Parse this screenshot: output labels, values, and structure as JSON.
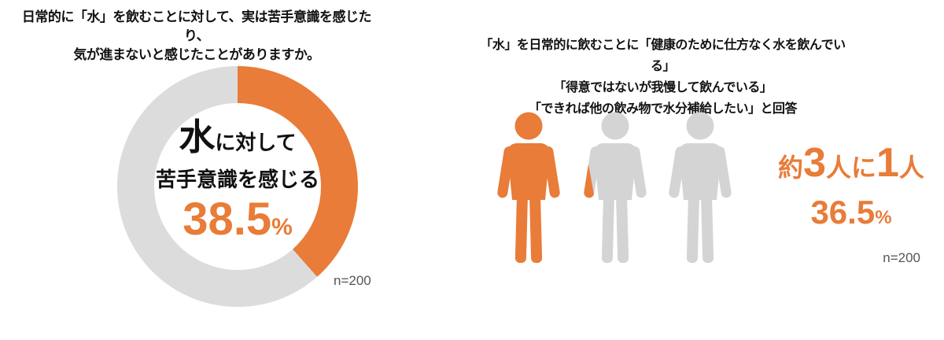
{
  "colors": {
    "accent_orange": "#E87C38",
    "donut_gray": "#DCDCDC",
    "person_gray": "#D4D4D4",
    "title_text": "#111111",
    "note_text": "#555555"
  },
  "left_panel": {
    "title_lines": [
      "日常的に「水」を飲むことに対して、実は苦手意識を感じたり、",
      "気が進まないと感じたことがありますか。"
    ],
    "donut_center": {
      "emphasis": "水",
      "suffix": "に対して",
      "line2": "苦手意識を感じる",
      "value": "38.5",
      "unit": "%"
    },
    "sample_note": "n=200"
  },
  "right_panel": {
    "title_lines": [
      "「水」を日常的に飲むことに「健康のために仕方なく水を飲んでいる」",
      "「得意ではないが我慢して飲んでいる」",
      "「できれば他の飲み物で水分補給したい」と回答"
    ],
    "ratio": {
      "p1": "約",
      "p2": "3",
      "p3": "人に",
      "p4": "1",
      "p5": "人"
    },
    "value": "36.5",
    "unit": "%",
    "sample_note": "n=200"
  },
  "chart_data": [
    {
      "type": "pie",
      "donut": true,
      "title": "日常的に「水」を飲むことに対して、実は苦手意識を感じたり、気が進まないと感じたことがありますか。",
      "labels": [
        "水に対して苦手意識を感じる",
        ""
      ],
      "values": [
        38.5,
        61.5
      ],
      "colors": [
        "#E87C38",
        "#DCDCDC"
      ],
      "start_angle_deg": 0,
      "direction": "clockwise",
      "center_text": "水に対して苦手意識を感じる 38.5%",
      "n_label": "n=200"
    },
    {
      "type": "pictogram",
      "title": "「水」を日常的に飲むことに「健康のために仕方なく水を飲んでいる」「得意ではないが我慢して飲んでいる」「できれば他の飲み物で水分補給したい」と回答",
      "label": "約3人に1人",
      "value_pct": 36.5,
      "icons_total": 3,
      "icons_highlighted": 1,
      "n_label": "n=200"
    }
  ]
}
